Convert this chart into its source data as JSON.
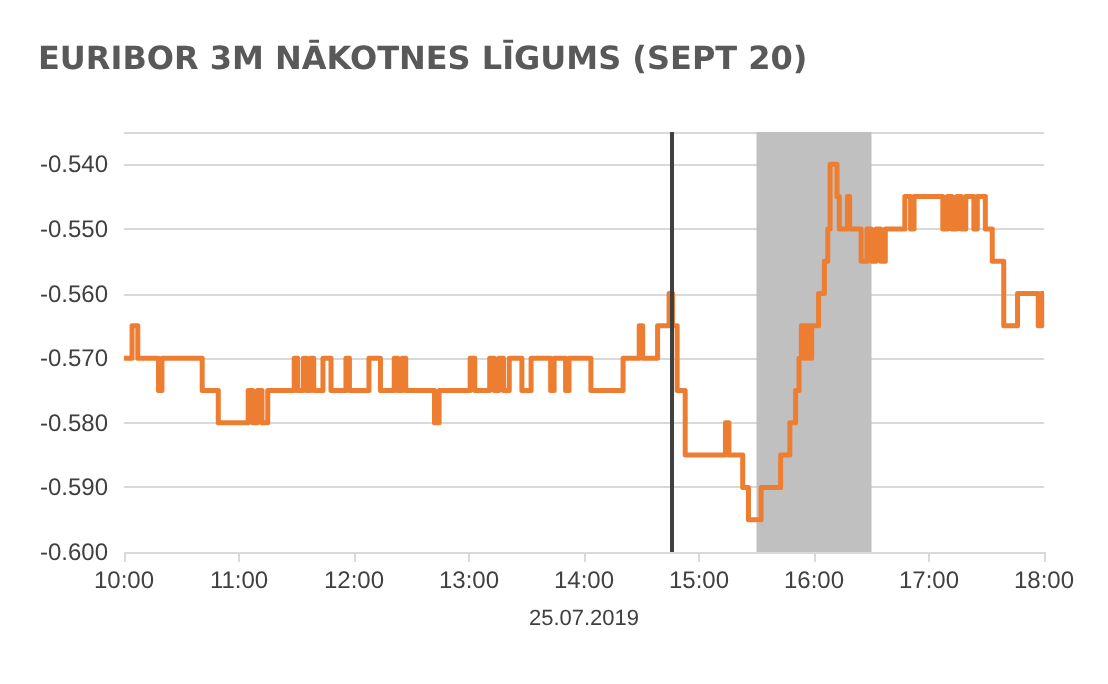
{
  "chart_data": {
    "type": "step",
    "title": "EURIBOR 3M NĀKOTNES LĪGUMS (SEPT 20)",
    "xlabel": "25.07.2019",
    "x": [
      10,
      10.07,
      10.12,
      10.3,
      10.33,
      10.68,
      10.82,
      11.08,
      11.12,
      11.16,
      11.2,
      11.25,
      11.48,
      11.51,
      11.56,
      11.59,
      11.62,
      11.65,
      11.73,
      11.8,
      11.93,
      11.96,
      12.13,
      12.23,
      12.35,
      12.38,
      12.42,
      12.45,
      12.7,
      12.74,
      13.01,
      13.05,
      13.18,
      13.22,
      13.26,
      13.3,
      13.35,
      13.46,
      13.54,
      13.71,
      13.74,
      13.84,
      13.87,
      14.06,
      14.34,
      14.48,
      14.51,
      14.64,
      14.74,
      14.77,
      14.81,
      14.88,
      15.23,
      15.26,
      15.38,
      15.43,
      15.54,
      15.71,
      15.79,
      15.84,
      15.87,
      15.89,
      15.92,
      15.94,
      15.96,
      15.98,
      16.04,
      16.09,
      16.12,
      16.14,
      16.2,
      16.22,
      16.29,
      16.31,
      16.41,
      16.46,
      16.5,
      16.54,
      16.58,
      16.62,
      16.79,
      16.84,
      16.87,
      17.12,
      17.16,
      17.2,
      17.24,
      17.28,
      17.32,
      17.39,
      17.42,
      17.49,
      17.55,
      17.65,
      17.77,
      17.95,
      17.98,
      18
    ],
    "series": [
      {
        "color": "#ed7d31",
        "values": [
          -0.57,
          -0.565,
          -0.57,
          -0.575,
          -0.57,
          -0.575,
          -0.58,
          -0.575,
          -0.58,
          -0.575,
          -0.58,
          -0.575,
          -0.57,
          -0.575,
          -0.57,
          -0.575,
          -0.57,
          -0.575,
          -0.57,
          -0.575,
          -0.57,
          -0.575,
          -0.57,
          -0.575,
          -0.57,
          -0.575,
          -0.57,
          -0.575,
          -0.58,
          -0.575,
          -0.57,
          -0.575,
          -0.57,
          -0.575,
          -0.57,
          -0.575,
          -0.57,
          -0.575,
          -0.57,
          -0.575,
          -0.57,
          -0.575,
          -0.57,
          -0.575,
          -0.57,
          -0.565,
          -0.57,
          -0.565,
          -0.56,
          -0.565,
          -0.575,
          -0.585,
          -0.58,
          -0.585,
          -0.59,
          -0.595,
          -0.59,
          -0.585,
          -0.58,
          -0.575,
          -0.57,
          -0.565,
          -0.57,
          -0.565,
          -0.57,
          -0.565,
          -0.56,
          -0.555,
          -0.55,
          -0.54,
          -0.545,
          -0.55,
          -0.545,
          -0.55,
          -0.555,
          -0.55,
          -0.555,
          -0.55,
          -0.555,
          -0.55,
          -0.545,
          -0.55,
          -0.545,
          -0.55,
          -0.545,
          -0.55,
          -0.545,
          -0.55,
          -0.545,
          -0.55,
          -0.545,
          -0.55,
          -0.555,
          -0.565,
          -0.56,
          -0.565,
          -0.56,
          -0.56
        ]
      }
    ],
    "xlim": [
      10,
      18
    ],
    "xticks": [
      {
        "value": 10,
        "label": "10:00"
      },
      {
        "value": 11,
        "label": "11:00"
      },
      {
        "value": 12,
        "label": "12:00"
      },
      {
        "value": 13,
        "label": "13:00"
      },
      {
        "value": 14,
        "label": "14:00"
      },
      {
        "value": 15,
        "label": "15:00"
      },
      {
        "value": 16,
        "label": "16:00"
      },
      {
        "value": 17,
        "label": "17:00"
      },
      {
        "value": 18,
        "label": "18:00"
      }
    ],
    "ylim": [
      -0.6,
      -0.535
    ],
    "yticks": [
      {
        "value": -0.6,
        "label": "-0.600"
      },
      {
        "value": -0.59,
        "label": "-0.590"
      },
      {
        "value": -0.58,
        "label": "-0.580"
      },
      {
        "value": -0.57,
        "label": "-0.570"
      },
      {
        "value": -0.56,
        "label": "-0.560"
      },
      {
        "value": -0.55,
        "label": "-0.550"
      },
      {
        "value": -0.54,
        "label": "-0.540"
      }
    ],
    "ref_lines": [
      {
        "axis": "x",
        "value": 14.76,
        "color": "#404040"
      }
    ],
    "bands": [
      {
        "axis": "x",
        "from": 15.5,
        "to": 16.5,
        "color": "#c0c0c0"
      }
    ],
    "grid": "y",
    "marker": "none",
    "line_style": "solid"
  }
}
